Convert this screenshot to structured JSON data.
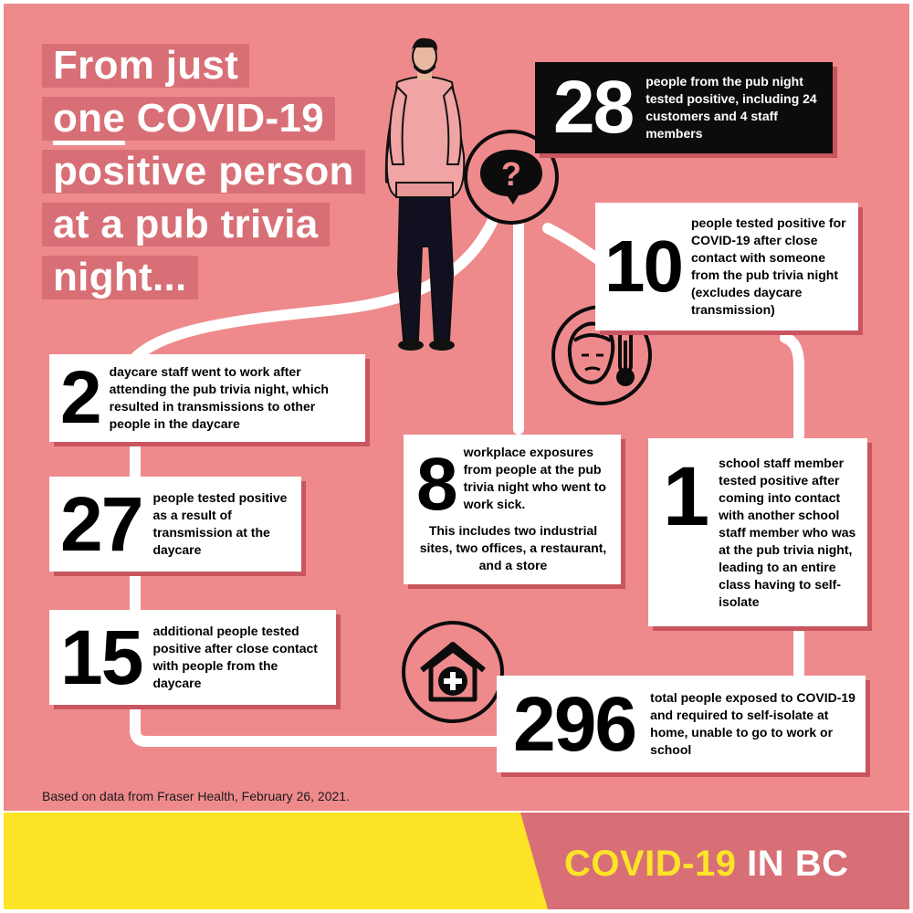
{
  "headline": {
    "line1": "From just",
    "line2_underlined": "one",
    "line2_rest": " COVID-19",
    "line3": "positive person",
    "line4": "at a pub trivia",
    "line5": "night..."
  },
  "stats": {
    "pub": {
      "number": "28",
      "text": "people from the pub night tested positive, including 24 customers and 4 staff members"
    },
    "close_contact": {
      "number": "10",
      "text": "people tested positive for COVID-19 after close contact with someone from the pub trivia night (excludes daycare transmission)"
    },
    "daycare_staff": {
      "number": "2",
      "text": "daycare staff went to work after attending the pub trivia night, which resulted in transmissions to other people in the daycare"
    },
    "daycare": {
      "number": "27",
      "text": "people tested positive as a result of transmission at the daycare"
    },
    "daycare_contacts": {
      "number": "15",
      "text": "additional people tested positive after close contact with people from the daycare"
    },
    "workplace": {
      "number": "8",
      "text_top": "workplace exposures from people at the pub trivia night who went to work sick.",
      "text_bottom": "This includes two industrial sites, two offices, a restaurant, and a store"
    },
    "school": {
      "number": "1",
      "text": "school staff member tested positive after coming into contact with another school staff member who was at the pub trivia night, leading to an entire class having to self-isolate"
    },
    "total": {
      "number": "296",
      "text": "total people exposed to COVID-19 and required to self-isolate at home, unable to go to work or school"
    }
  },
  "icons": {
    "question": "question-speech-bubble-icon",
    "sick": "sick-person-thermometer-icon",
    "home": "house-medical-cross-icon",
    "person": "person-illustration"
  },
  "footnote": "Based on data from Fraser Health, February 26, 2021.",
  "footer": {
    "brand_part1": "COVID-19",
    "brand_part2": "IN BC"
  },
  "colors": {
    "background": "#ee8a8c",
    "accent": "#d86f76",
    "yellow": "#fde426",
    "dark": "#0c0c0c"
  }
}
